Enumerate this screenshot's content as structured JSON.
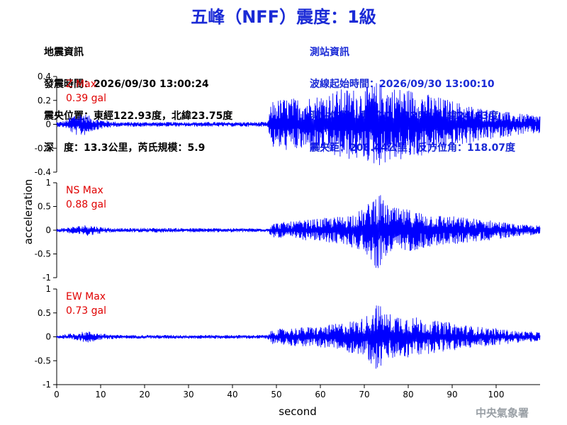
{
  "header": {
    "title": "五峰（NFF）震度：1級"
  },
  "earthquake_info": {
    "heading": "地震資訊",
    "lines": [
      "發震時間：2026/09/30 13:00:24",
      "震央位置：東經122.93度，北緯23.75度",
      "深　度：13.3公里，芮氏規模：5.9"
    ]
  },
  "station_info": {
    "heading": "測站資訊",
    "lines": [
      "波線起始時間：2026/09/30 13:00:10",
      "測站位置：東經121.12度，北緯24.63度",
      "震央距：208.44公里，反方位角：118.07度"
    ]
  },
  "footer": {
    "agency": "中央氣象署"
  },
  "colors": {
    "trace": "#0000ff",
    "label_red": "#e00000",
    "title_blue": "#1a2ad6"
  },
  "chart_data": {
    "type": "line",
    "xlabel": "second",
    "ylabel": "acceleration",
    "xlim": [
      0,
      110
    ],
    "x_ticks": [
      0,
      10,
      20,
      30,
      40,
      50,
      60,
      70,
      80,
      90,
      100
    ],
    "grid": false,
    "panels": [
      {
        "component": "Z",
        "label": "Z Max",
        "max_label": "0.39 gal",
        "ylim": [
          -0.4,
          0.4
        ],
        "y_ticks": [
          -0.4,
          -0.2,
          0,
          0.2,
          0.4
        ],
        "y_tick_labels": [
          "-0.4",
          "-0.2",
          "0",
          "0.2",
          "0.4"
        ],
        "envelope": [
          [
            0,
            0.02
          ],
          [
            2,
            0.03
          ],
          [
            4,
            0.09
          ],
          [
            6,
            0.1
          ],
          [
            8,
            0.06
          ],
          [
            10,
            0.04
          ],
          [
            12,
            0.03
          ],
          [
            14,
            0.02
          ],
          [
            20,
            0.02
          ],
          [
            48,
            0.02
          ],
          [
            49,
            0.2
          ],
          [
            52,
            0.22
          ],
          [
            55,
            0.22
          ],
          [
            60,
            0.25
          ],
          [
            65,
            0.3
          ],
          [
            70,
            0.3
          ],
          [
            73,
            0.36
          ],
          [
            75,
            0.32
          ],
          [
            80,
            0.3
          ],
          [
            85,
            0.25
          ],
          [
            90,
            0.2
          ],
          [
            95,
            0.15
          ],
          [
            100,
            0.12
          ],
          [
            105,
            0.09
          ],
          [
            110,
            0.08
          ]
        ]
      },
      {
        "component": "NS",
        "label": "NS Max",
        "max_label": "0.88 gal",
        "ylim": [
          -1,
          1
        ],
        "y_ticks": [
          -1,
          -0.5,
          0,
          0.5,
          1
        ],
        "y_tick_labels": [
          "-1",
          "-0.5",
          "0",
          "0.5",
          "1"
        ],
        "envelope": [
          [
            0,
            0.03
          ],
          [
            4,
            0.08
          ],
          [
            7,
            0.12
          ],
          [
            10,
            0.07
          ],
          [
            14,
            0.04
          ],
          [
            20,
            0.05
          ],
          [
            48,
            0.04
          ],
          [
            49,
            0.15
          ],
          [
            55,
            0.2
          ],
          [
            60,
            0.25
          ],
          [
            65,
            0.3
          ],
          [
            70,
            0.45
          ],
          [
            73,
            0.85
          ],
          [
            75,
            0.55
          ],
          [
            78,
            0.45
          ],
          [
            80,
            0.45
          ],
          [
            85,
            0.35
          ],
          [
            90,
            0.3
          ],
          [
            95,
            0.25
          ],
          [
            100,
            0.2
          ],
          [
            105,
            0.12
          ],
          [
            110,
            0.1
          ]
        ]
      },
      {
        "component": "EW",
        "label": "EW Max",
        "max_label": "0.73 gal",
        "ylim": [
          -1,
          1
        ],
        "y_ticks": [
          -1,
          -0.5,
          0,
          0.5,
          1
        ],
        "y_tick_labels": [
          "-1",
          "-0.5",
          "0",
          "0.5",
          "1"
        ],
        "envelope": [
          [
            0,
            0.03
          ],
          [
            4,
            0.08
          ],
          [
            7,
            0.12
          ],
          [
            10,
            0.07
          ],
          [
            14,
            0.04
          ],
          [
            20,
            0.04
          ],
          [
            48,
            0.04
          ],
          [
            49,
            0.15
          ],
          [
            55,
            0.2
          ],
          [
            60,
            0.22
          ],
          [
            65,
            0.3
          ],
          [
            70,
            0.4
          ],
          [
            73,
            0.73
          ],
          [
            75,
            0.5
          ],
          [
            80,
            0.45
          ],
          [
            85,
            0.35
          ],
          [
            90,
            0.3
          ],
          [
            95,
            0.22
          ],
          [
            100,
            0.18
          ],
          [
            105,
            0.12
          ],
          [
            110,
            0.1
          ]
        ]
      }
    ]
  }
}
